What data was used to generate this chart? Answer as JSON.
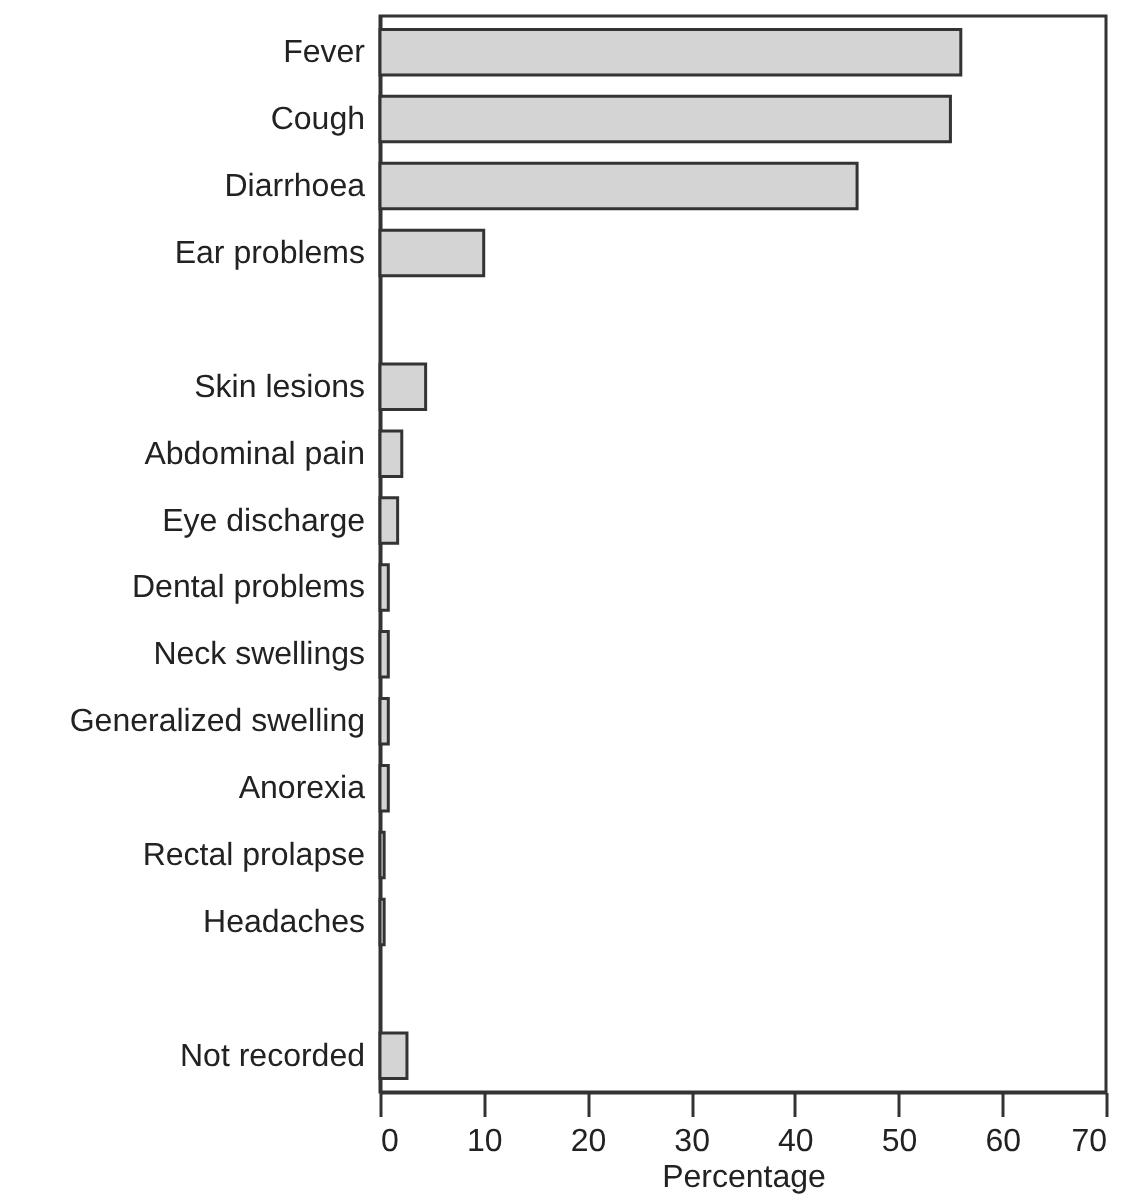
{
  "chart_data": {
    "type": "bar",
    "orientation": "horizontal",
    "xlabel": "Percentage",
    "categories": [
      "Fever",
      "Cough",
      "Diarrhoea",
      "Ear problems",
      null,
      "Skin lesions",
      "Abdominal pain",
      "Eye discharge",
      "Dental problems",
      "Neck swellings",
      "Generalized swelling",
      "Anorexia",
      "Rectal prolapse",
      "Headaches",
      null,
      "Not recorded"
    ],
    "values": [
      56,
      55,
      46,
      10,
      null,
      4.4,
      2.1,
      1.7,
      0.8,
      0.8,
      0.8,
      0.8,
      0.4,
      0.4,
      null,
      2.6
    ],
    "color": "#d4d4d4",
    "xlim": [
      0,
      70
    ],
    "xticks": [
      0,
      10,
      20,
      30,
      40,
      50,
      60,
      70
    ],
    "grid": false
  }
}
